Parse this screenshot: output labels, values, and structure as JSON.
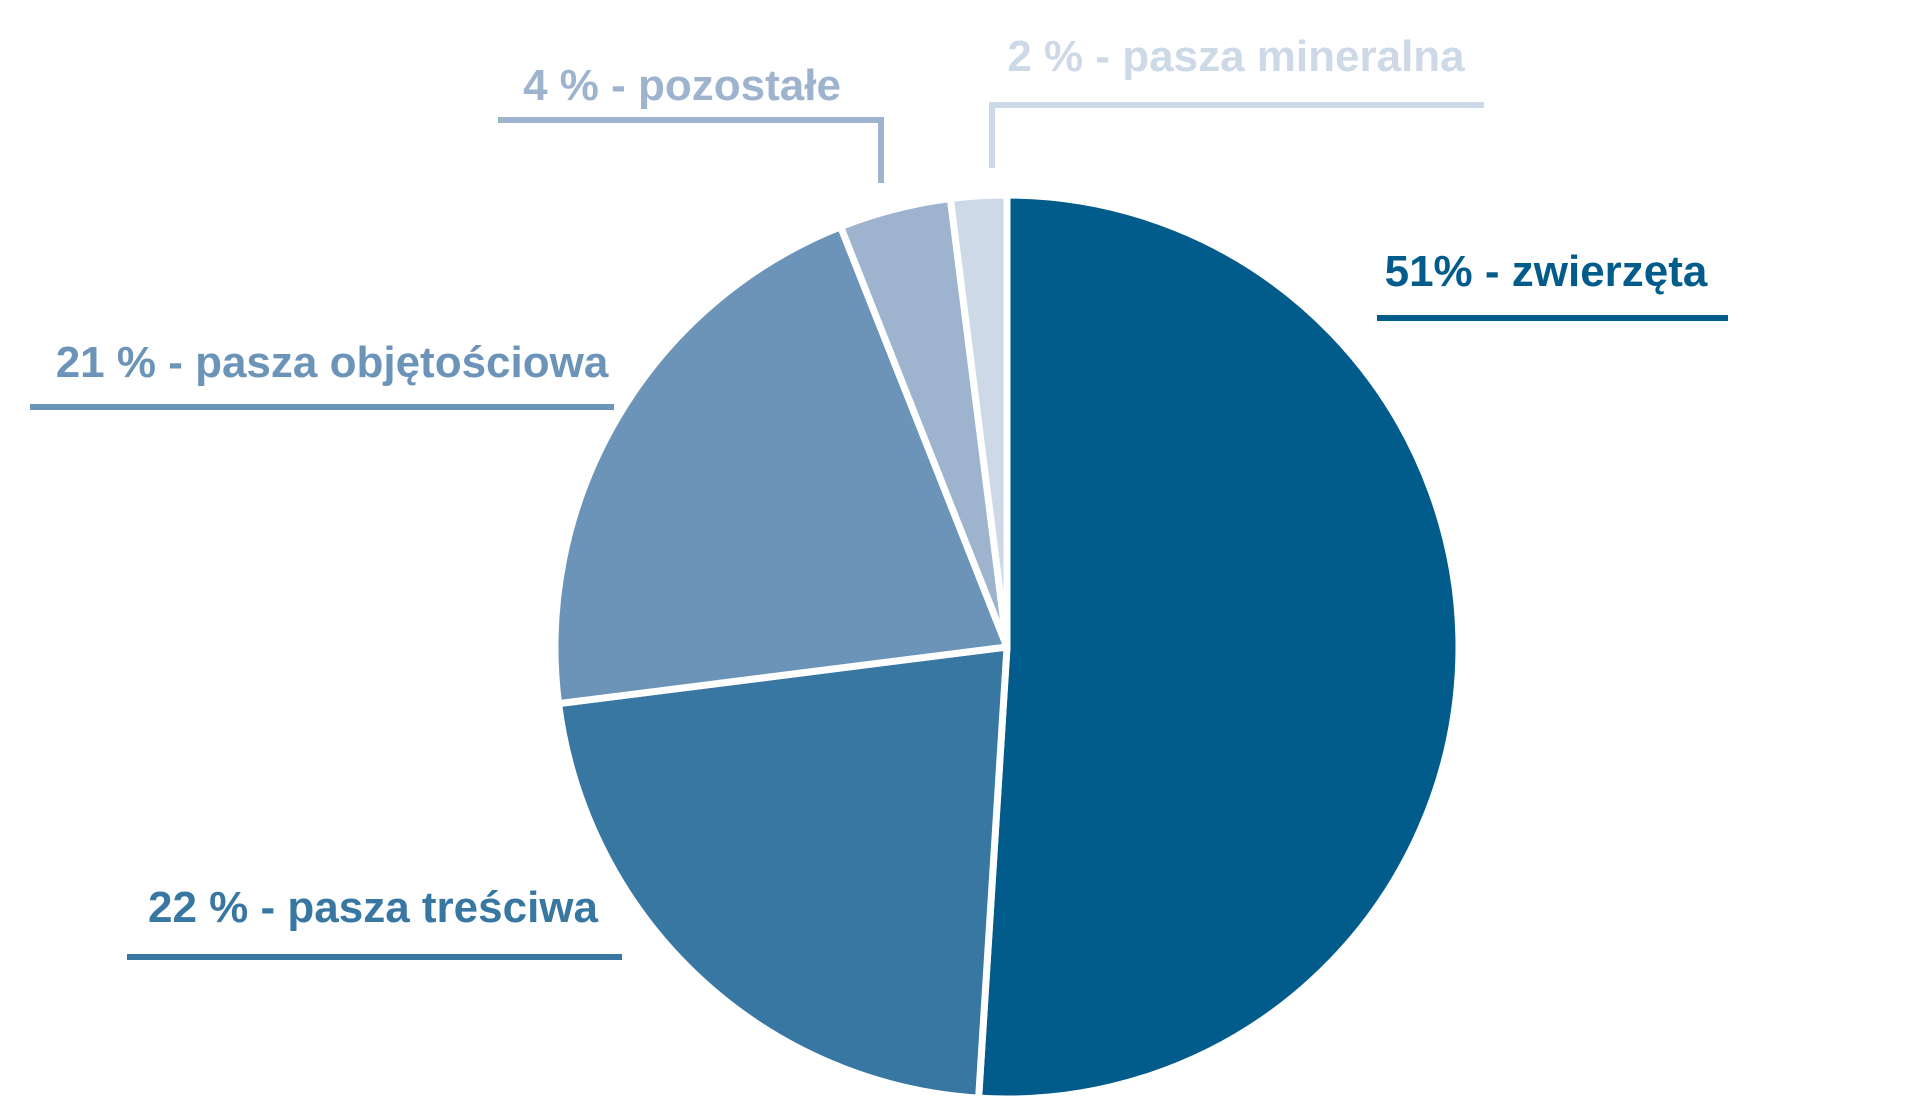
{
  "chart_data": {
    "type": "pie",
    "title": "",
    "slices": [
      {
        "label": "51% - zwierzęta",
        "value": 51,
        "color": "#025c8b"
      },
      {
        "label": "22 % - pasza treściwa",
        "value": 22,
        "color": "#3777a2"
      },
      {
        "label": "21 % - pasza objętościowa",
        "value": 21,
        "color": "#6b94b8"
      },
      {
        "label": "4 % - pozostałe",
        "value": 4,
        "color": "#9db3ce"
      },
      {
        "label": "2 % - pasza mineralna",
        "value": 2,
        "color": "#cdd9e6"
      }
    ],
    "direction": "clockwise",
    "start_angle": "top",
    "legend": "none",
    "separator_color": "#ffffff"
  }
}
